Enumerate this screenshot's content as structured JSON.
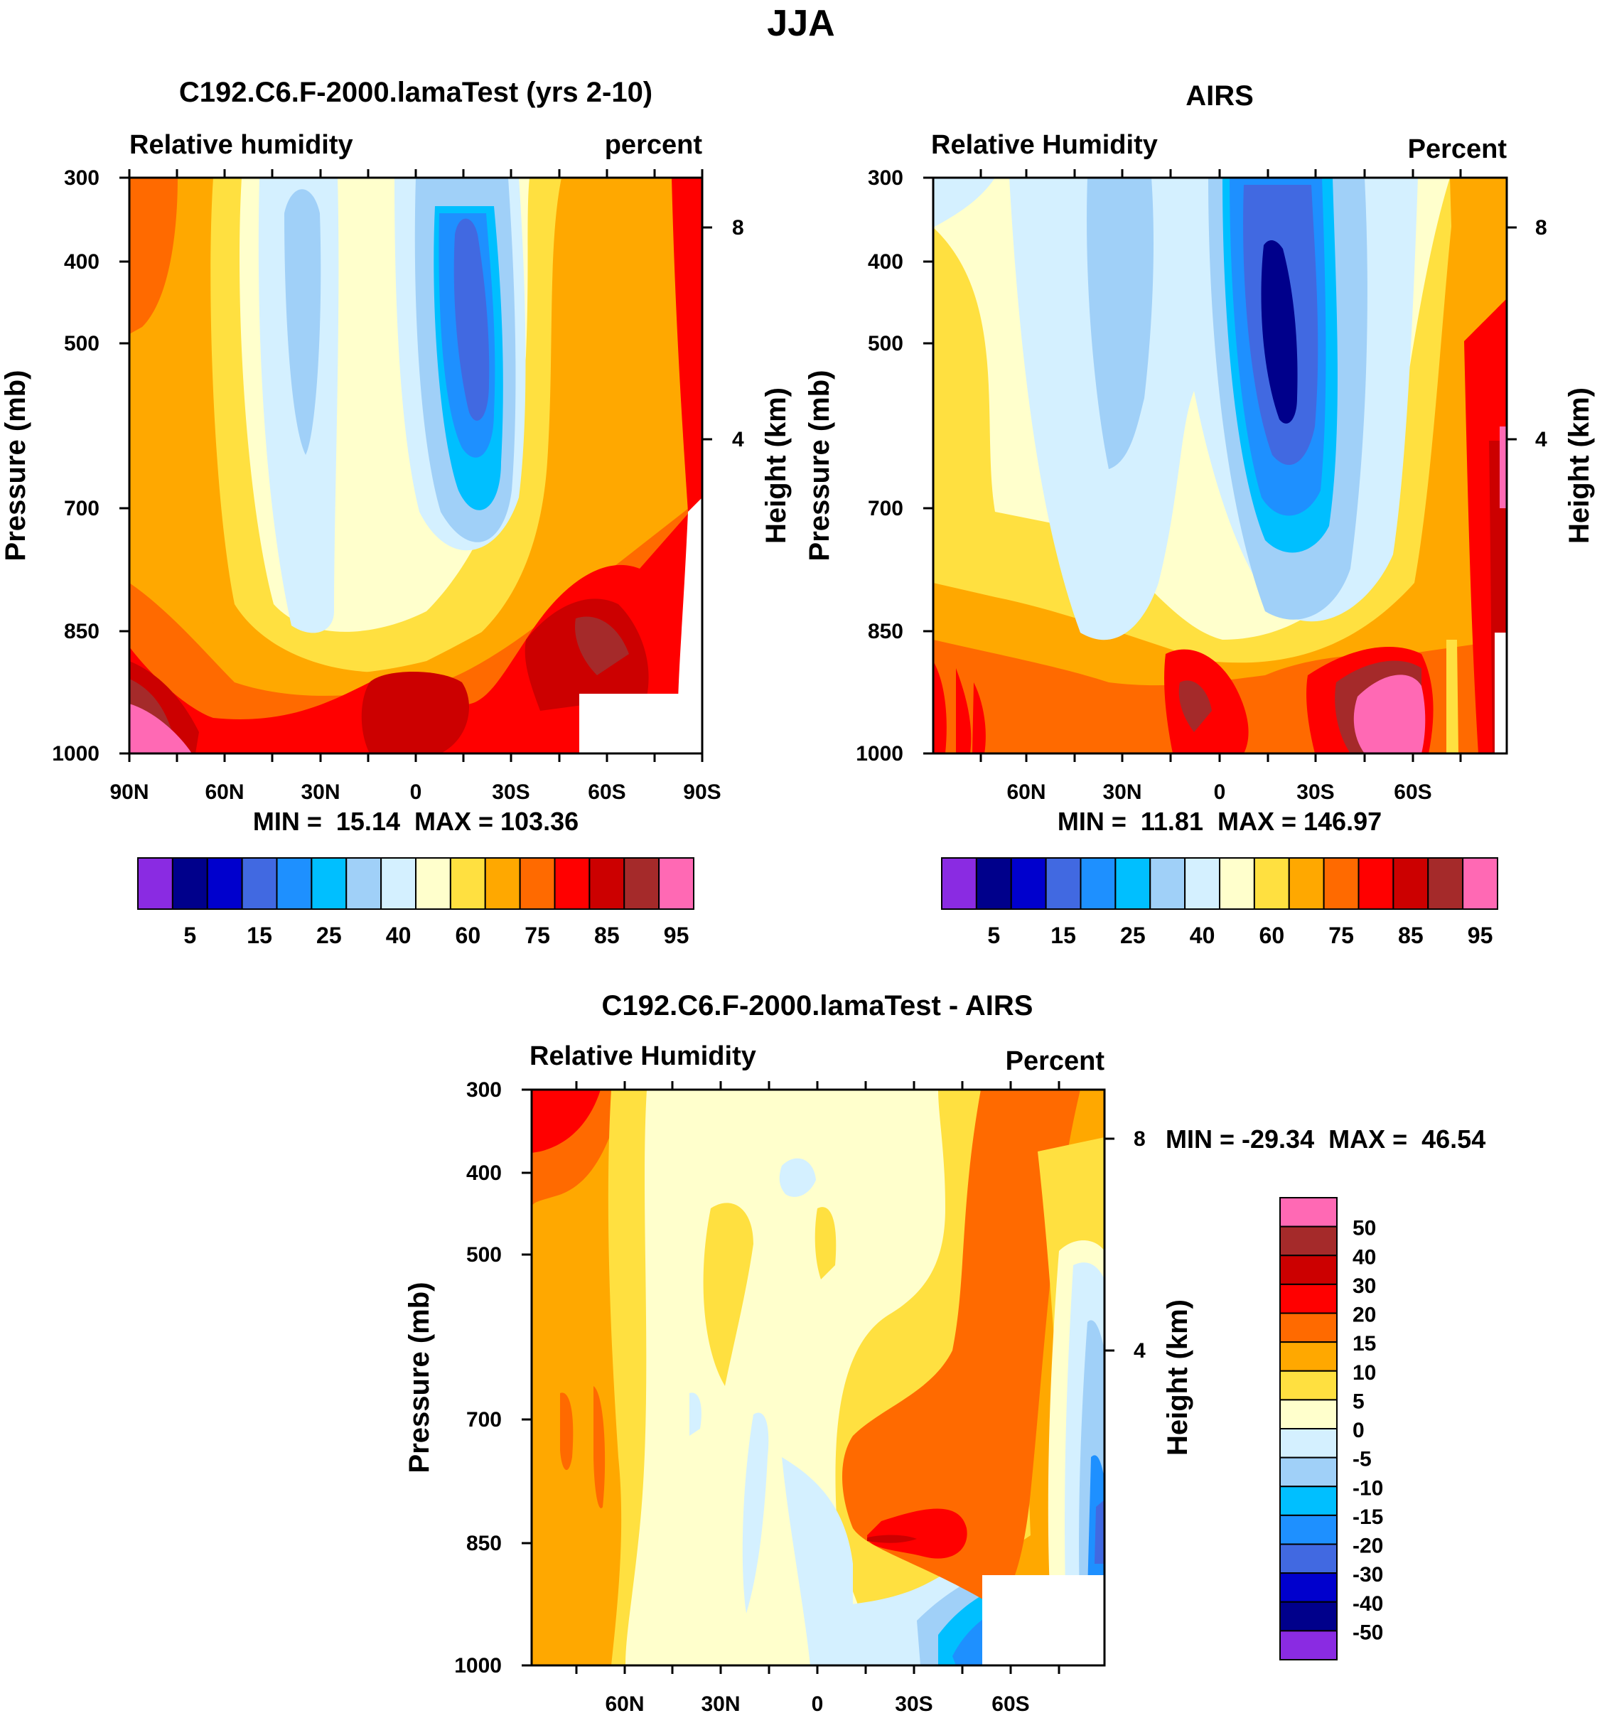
{
  "title": "JJA",
  "chart_data": [
    {
      "type": "heatmap",
      "title": "C192.C6.F-2000.lamaTest (yrs 2-10)",
      "left_subtitle": "Relative humidity",
      "right_subtitle": "percent",
      "ylabel": "Pressure (mb)",
      "ylabel_right": "Height (km)",
      "x_ticks": [
        "90N",
        "60N",
        "30N",
        "0",
        "30S",
        "60S",
        "90S"
      ],
      "y_ticks": [
        "300",
        "400",
        "500",
        "700",
        "850",
        "1000"
      ],
      "y_right_ticks": [
        "8",
        "4"
      ],
      "ylim": [
        1000,
        300
      ],
      "stats": "MIN =  15.14  MAX = 103.36",
      "colorbar_labels": [
        "5",
        "15",
        "25",
        "40",
        "60",
        "75",
        "85",
        "95"
      ]
    },
    {
      "type": "heatmap",
      "title": "AIRS",
      "left_subtitle": "Relative Humidity",
      "right_subtitle": "Percent",
      "ylabel": "Pressure (mb)",
      "ylabel_right": "Height (km)",
      "x_ticks": [
        "60N",
        "30N",
        "0",
        "30S",
        "60S"
      ],
      "y_ticks": [
        "300",
        "400",
        "500",
        "700",
        "850",
        "1000"
      ],
      "y_right_ticks": [
        "8",
        "4"
      ],
      "ylim": [
        1000,
        300
      ],
      "stats": "MIN =  11.81  MAX = 146.97",
      "colorbar_labels": [
        "5",
        "15",
        "25",
        "40",
        "60",
        "75",
        "85",
        "95"
      ]
    },
    {
      "type": "heatmap",
      "title": "C192.C6.F-2000.lamaTest - AIRS",
      "left_subtitle": "Relative Humidity",
      "right_subtitle": "Percent",
      "ylabel": "Pressure (mb)",
      "ylabel_right": "Height (km)",
      "x_ticks": [
        "60N",
        "30N",
        "0",
        "30S",
        "60S"
      ],
      "y_ticks": [
        "300",
        "400",
        "500",
        "700",
        "850",
        "1000"
      ],
      "y_right_ticks": [
        "8",
        "4"
      ],
      "ylim": [
        1000,
        300
      ],
      "stats": "MIN = -29.34  MAX =  46.54",
      "colorbar_labels": [
        "50",
        "40",
        "30",
        "20",
        "15",
        "10",
        "5",
        "0",
        "-5",
        "-10",
        "-15",
        "-20",
        "-30",
        "-40",
        "-50"
      ]
    }
  ],
  "colors": {
    "palette": [
      "#8a2be2",
      "#00008b",
      "#0000cd",
      "#4169e1",
      "#1e90ff",
      "#00bfff",
      "#a0d0f8",
      "#d4f0ff",
      "#ffffcc",
      "#ffe040",
      "#ffa800",
      "#ff6a00",
      "#ff0000",
      "#cc0000",
      "#a52a2a",
      "#ff69b4"
    ]
  }
}
